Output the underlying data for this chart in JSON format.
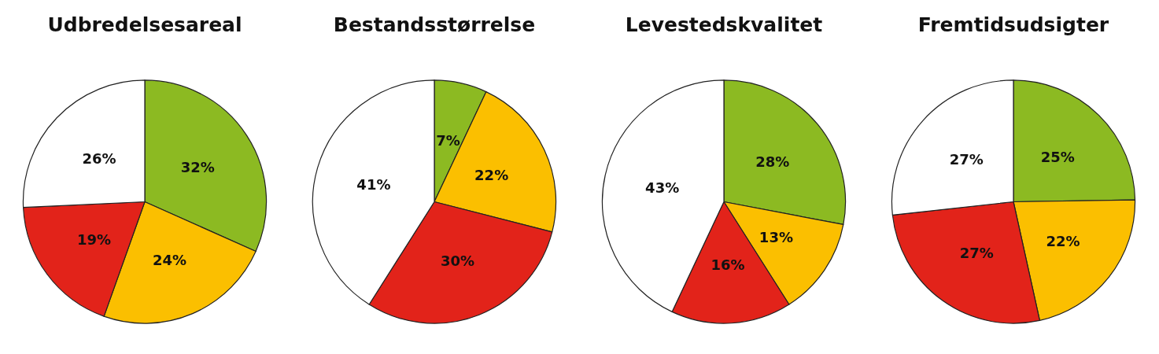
{
  "chart_data": [
    {
      "type": "pie",
      "title": "Udbredelsesareal",
      "categories": [
        null,
        null,
        null,
        null
      ],
      "values": [
        32,
        24,
        19,
        26
      ],
      "colors": [
        "#8cba22",
        "#fbbf00",
        "#e2231a",
        "#ffffff"
      ],
      "value_labels": [
        "32%",
        "24%",
        "19%",
        "26%"
      ]
    },
    {
      "type": "pie",
      "title": "Bestandsstørrelse",
      "categories": [
        null,
        null,
        null,
        null
      ],
      "values": [
        7,
        22,
        30,
        41
      ],
      "colors": [
        "#8cba22",
        "#fbbf00",
        "#e2231a",
        "#ffffff"
      ],
      "value_labels": [
        "7%",
        "22%",
        "30%",
        "41%"
      ]
    },
    {
      "type": "pie",
      "title": "Levestedskvalitet",
      "categories": [
        null,
        null,
        null,
        null
      ],
      "values": [
        28,
        13,
        16,
        43
      ],
      "colors": [
        "#8cba22",
        "#fbbf00",
        "#e2231a",
        "#ffffff"
      ],
      "value_labels": [
        "28%",
        "13%",
        "16%",
        "43%"
      ]
    },
    {
      "type": "pie",
      "title": "Fremtidsudsigter",
      "categories": [
        null,
        null,
        null,
        null
      ],
      "values": [
        25,
        22,
        27,
        27
      ],
      "colors": [
        "#8cba22",
        "#fbbf00",
        "#e2231a",
        "#ffffff"
      ],
      "value_labels": [
        "25%",
        "22%",
        "27%",
        "27%"
      ]
    }
  ]
}
